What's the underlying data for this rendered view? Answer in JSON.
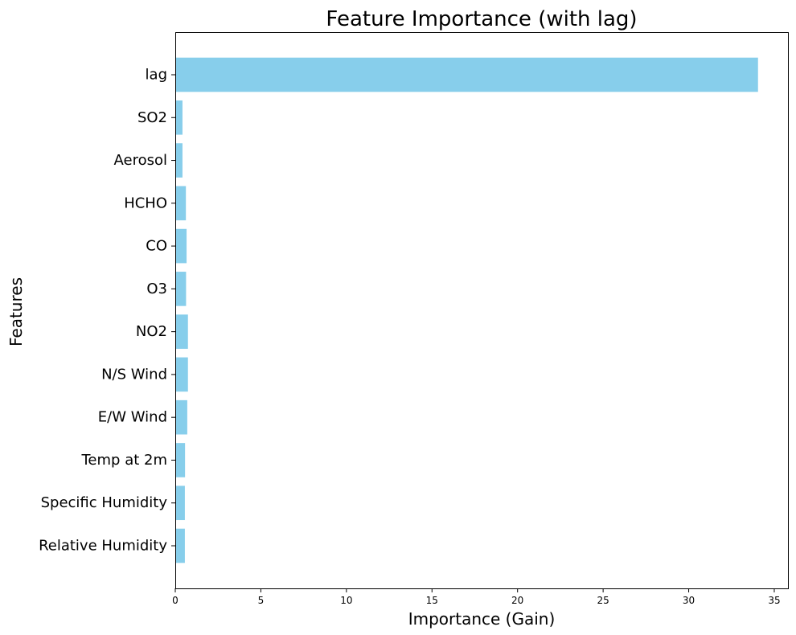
{
  "chart_data": {
    "type": "bar",
    "orientation": "horizontal",
    "title": "Feature Importance (with lag)",
    "xlabel": "Importance (Gain)",
    "ylabel": "Features",
    "xlim": [
      0,
      35.8
    ],
    "xticks": [
      0,
      5,
      10,
      15,
      20,
      25,
      30,
      35
    ],
    "grid": false,
    "bar_color": "#87CEEB",
    "categories": [
      "lag",
      "SO2",
      "Aerosol",
      "HCHO",
      "CO",
      "O3",
      "NO2",
      "N/S Wind",
      "E/W Wind",
      "Temp at 2m",
      "Specific Humidity",
      "Relative Humidity"
    ],
    "values": [
      34.05,
      0.42,
      0.42,
      0.62,
      0.66,
      0.63,
      0.74,
      0.74,
      0.7,
      0.57,
      0.56,
      0.56
    ]
  }
}
